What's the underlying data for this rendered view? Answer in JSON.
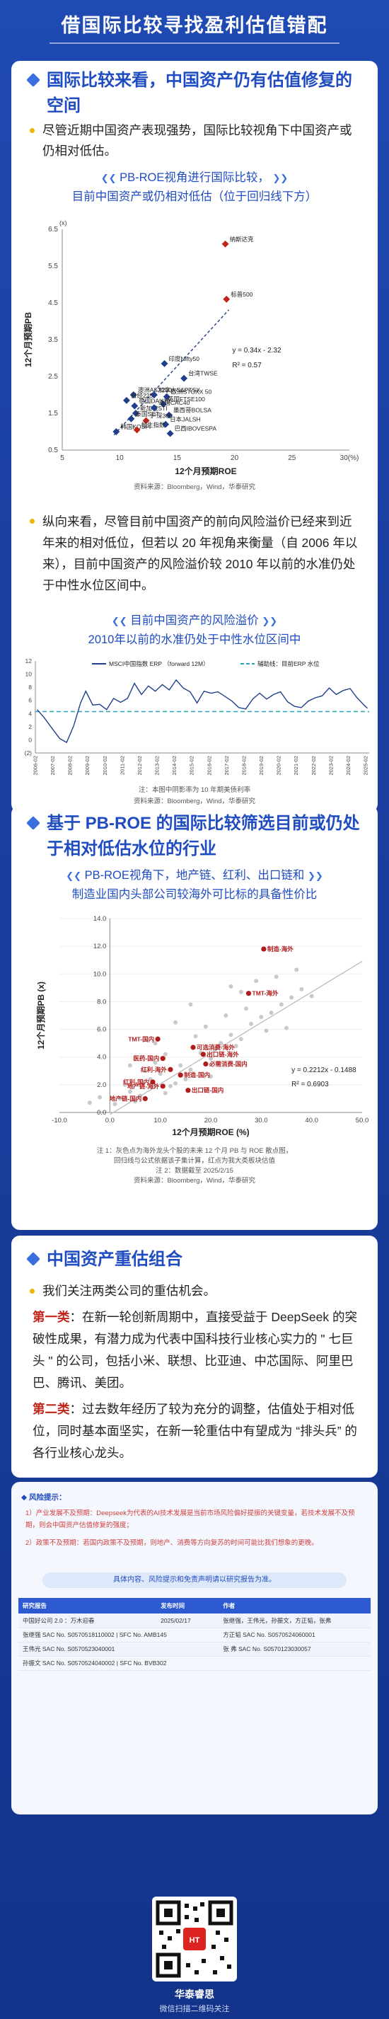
{
  "header": {
    "title": "借国际比较寻找盈利估值错配"
  },
  "section1": {
    "heading": "国际比较来看，中国资产仍有估值修复的空间",
    "bullet": "尽管近期中国资产表现强势，国际比较视角下中国资产或仍相对低估。",
    "chart_title_line1": "PB-ROE视角进行国际比较，",
    "chart_title_line2": "目前中国资产或仍相对低估（位于回归线下方）",
    "source": "资料来源：Bloomberg，Wind，华泰研究",
    "bullet2": "纵向来看，尽管目前中国资产的前向风险溢价已经来到近年来的相对低位，但若以 20 年视角来衡量（自 2006 年以来），目前中国资产的风险溢价较 2010 年以前的水准仍处于中性水位区间中。",
    "chart2_title_line1": "目前中国资产的风险溢价",
    "chart2_title_line2": "2010年以前的水准仍处于中性水位区间中",
    "chart2_note": "注：本图中阴影率为 10 年期美债利率",
    "chart2_source": "资料来源：Bloomberg，Wind，华泰研究"
  },
  "section2": {
    "heading": "基于 PB-ROE 的国际比较筛选目前或仍处于相对低估水位的行业",
    "chart_title_line1": "PB-ROE视角下，地产链、红利、出口链和",
    "chart_title_line2": "制造业国内头部公司较海外可比标的具备性价比",
    "note1": "注 1：灰色点为海外龙头个股的未来 12 个月 PB 与 ROE 散点图，",
    "note1b": "回归线与公式依据该子集计算，红点为我大类板块估值",
    "note2": "注 2：数据截至 2025/2/15",
    "source": "资料来源：Bloomberg，Wind，华泰研究"
  },
  "section3": {
    "heading": "中国资产重估组合",
    "bullet": "我们关注两类公司的重估机会。",
    "p1_kw": "第一类",
    "p1": "：在新一轮创新周期中，直接受益于 DeepSeek 的突破性成果，有潜力成为代表中国科技行业核心实力的 \" 七巨头 \" 的公司，包括小米、联想、比亚迪、中芯国际、阿里巴巴、腾讯、美团。",
    "p2_kw": "第二类",
    "p2": "：过去数年经历了较为充分的调整，估值处于相对低位，同时基本面坚实，在新一轮重估中有望成为 “排头兵” 的各行业核心龙头。"
  },
  "risk": {
    "title": "风险提示：",
    "items": [
      "1）产业发展不及预期：Deepseek为代表的AI技术发展是当前市场风险偏好提振的关键变量，若技术发展不及预期，则会中国资产估值修复的强度；",
      "2）政策不及预期：若国内政策不及预期，则地产、消费等方向复苏的时间可能比我们想象的更晚。"
    ],
    "pill": "具体内容、风险提示和免责声明请以研究报告为准。"
  },
  "authors": {
    "headers": [
      "研究报告",
      "发布时间",
      "作者"
    ],
    "report": [
      "中国好公司 2.0 ：万木迎春",
      "2025/02/17",
      "张继强，王伟光，孙振文，方正韬，张弗"
    ],
    "rows": [
      [
        "张继强 SAC No. S0570518110002 | SFC No. AMB145",
        "方正韬 SAC No. S0570524060001"
      ],
      [
        "王伟光 SAC No. S0570523040001",
        "张 弗 SAC No. S0570123030057"
      ],
      [
        "孙振文 SAC No. S0570524040002 | SFC No. BVB302",
        ""
      ]
    ]
  },
  "footer": {
    "brand": "华泰睿思",
    "caption": "微信扫描二维码关注"
  },
  "chart_data": [
    {
      "type": "scatter",
      "title": "PB-ROE视角进行国际比较，目前中国资产或仍相对低估（位于回归线下方）",
      "xlabel": "12个月预期ROE",
      "ylabel": "12个月预期PB",
      "xlim": [
        5,
        30
      ],
      "ylim": [
        0.5,
        6.5
      ],
      "x_ticks": [
        "5",
        "10",
        "15",
        "20",
        "25",
        "30(%)"
      ],
      "y_ticks": [
        "0.5",
        "1.5",
        "2.5",
        "3.5",
        "4.5",
        "5.5",
        "6.5"
      ],
      "regression": {
        "equation": "y = 0.34x - 2.32",
        "r2": "R² = 0.57"
      },
      "points": [
        {
          "label": "纳斯达克",
          "x": 19.2,
          "y": 6.1,
          "group": "highlight"
        },
        {
          "label": "标普500",
          "x": 19.3,
          "y": 4.6,
          "group": "highlight"
        },
        {
          "label": "印度Nifty50",
          "x": 13.9,
          "y": 2.85,
          "group": "overseas"
        },
        {
          "label": "台湾TWSE",
          "x": 15.6,
          "y": 2.45,
          "group": "overseas"
        },
        {
          "label": "澳洲ASX200",
          "x": 11.2,
          "y": 2.0,
          "group": "overseas"
        },
        {
          "label": "加拿大S&PTSX",
          "x": 13.0,
          "y": 2.0,
          "group": "overseas"
        },
        {
          "label": "日经225",
          "x": 10.6,
          "y": 1.85,
          "group": "overseas"
        },
        {
          "label": "德国DAX30",
          "x": 11.3,
          "y": 1.7,
          "group": "overseas"
        },
        {
          "label": "欧洲STOXX 50",
          "x": 14.1,
          "y": 1.95,
          "group": "overseas"
        },
        {
          "label": "英国FTSE100",
          "x": 13.8,
          "y": 1.75,
          "group": "overseas"
        },
        {
          "label": "新加坡STI",
          "x": 11.4,
          "y": 1.5,
          "group": "overseas"
        },
        {
          "label": "法国CAC40",
          "x": 13.0,
          "y": 1.65,
          "group": "overseas"
        },
        {
          "label": "泰国SET",
          "x": 11.0,
          "y": 1.35,
          "group": "overseas"
        },
        {
          "label": "墨西哥BOLSA",
          "x": 14.3,
          "y": 1.45,
          "group": "overseas"
        },
        {
          "label": "沪深300",
          "x": 12.3,
          "y": 1.3,
          "group": "china"
        },
        {
          "label": "日本JALSH",
          "x": 14.0,
          "y": 1.2,
          "group": "overseas"
        },
        {
          "label": "韩国KOSPI",
          "x": 9.7,
          "y": 1.0,
          "group": "overseas"
        },
        {
          "label": "恒生指数",
          "x": 11.5,
          "y": 1.05,
          "group": "china"
        },
        {
          "label": "巴西IBOVESPA",
          "x": 14.4,
          "y": 0.95,
          "group": "overseas"
        }
      ]
    },
    {
      "type": "line",
      "title": "目前中国资产的风险溢价 2010年以前的水准仍处于中性水位区间中",
      "legend": [
        "MSCI中国指数 ERP （forward 12M）",
        "辅助线：目前ERP 水位"
      ],
      "ylim": [
        -2,
        12
      ],
      "y_ticks": [
        "(2)",
        "0",
        "2",
        "4",
        "6",
        "8",
        "10",
        "12"
      ],
      "x_ticks": [
        "2006-02",
        "2007-02",
        "2008-02",
        "2009-02",
        "2010-02",
        "2011-02",
        "2012-02",
        "2013-02",
        "2014-02",
        "2015-02",
        "2016-02",
        "2017-02",
        "2018-02",
        "2019-02",
        "2020-02",
        "2021-02",
        "2022-02",
        "2023-02",
        "2024-02",
        "2025-02"
      ],
      "current_level": 4.3,
      "x": [
        2006.1,
        2006.5,
        2007.0,
        2007.4,
        2007.8,
        2008.2,
        2008.6,
        2008.9,
        2009.3,
        2009.7,
        2010.1,
        2010.5,
        2010.9,
        2011.3,
        2011.7,
        2012.1,
        2012.5,
        2012.9,
        2013.3,
        2013.7,
        2014.1,
        2014.5,
        2014.9,
        2015.3,
        2015.7,
        2016.1,
        2016.5,
        2016.9,
        2017.3,
        2017.7,
        2018.1,
        2018.5,
        2018.9,
        2019.3,
        2019.7,
        2020.1,
        2020.5,
        2020.9,
        2021.3,
        2021.7,
        2022.1,
        2022.5,
        2022.9,
        2023.3,
        2023.7,
        2024.1,
        2024.5,
        2024.9,
        2025.1
      ],
      "values": [
        4.6,
        3.4,
        1.6,
        0.2,
        -0.4,
        2.1,
        5.6,
        7.4,
        5.3,
        5.4,
        4.6,
        6.3,
        5.7,
        6.3,
        8.6,
        6.9,
        8.2,
        7.4,
        8.4,
        7.6,
        9.1,
        7.9,
        7.3,
        5.6,
        7.4,
        7.1,
        7.3,
        6.6,
        5.9,
        4.9,
        4.7,
        6.2,
        7.1,
        6.2,
        6.9,
        7.3,
        5.8,
        5.1,
        4.9,
        5.9,
        6.4,
        6.7,
        7.9,
        6.9,
        7.5,
        7.8,
        6.4,
        5.3,
        4.8
      ]
    },
    {
      "type": "scatter",
      "title": "PB-ROE视角下，地产链、红利、出口链和制造业国内头部公司较海外可比标的具备性价比",
      "xlabel": "12个月预期ROE (%)",
      "ylabel": "12个月预期PB (x)",
      "xlim": [
        -10,
        50
      ],
      "ylim": [
        0,
        14
      ],
      "x_ticks": [
        "-10.0",
        "0.0",
        "10.0",
        "20.0",
        "30.0",
        "40.0",
        "50.0"
      ],
      "y_ticks": [
        "0.0",
        "2.0",
        "4.0",
        "6.0",
        "8.0",
        "10.0",
        "12.0",
        "14.0"
      ],
      "regression": {
        "equation": "y = 0.2212x - 0.1488",
        "r2": "R² = 0.6903"
      },
      "points": [
        {
          "label": "制造-海外",
          "x": 30.5,
          "y": 11.8,
          "group": "red"
        },
        {
          "label": "TMT-海外",
          "x": 27.5,
          "y": 8.6,
          "group": "red"
        },
        {
          "label": "TMT-国内",
          "x": 9.5,
          "y": 5.3,
          "group": "red"
        },
        {
          "label": "可选消费-海外",
          "x": 16.5,
          "y": 4.7,
          "group": "red"
        },
        {
          "label": "出口链-海外",
          "x": 18.5,
          "y": 4.2,
          "group": "red"
        },
        {
          "label": "医药-国内",
          "x": 10.5,
          "y": 3.9,
          "group": "red"
        },
        {
          "label": "必需消费-国内",
          "x": 19.0,
          "y": 3.5,
          "group": "red"
        },
        {
          "label": "红利-海外",
          "x": 12.0,
          "y": 3.1,
          "group": "red"
        },
        {
          "label": "制造-国内",
          "x": 14.0,
          "y": 2.7,
          "group": "red"
        },
        {
          "label": "红利-国内",
          "x": 8.5,
          "y": 2.2,
          "group": "red"
        },
        {
          "label": "地产链-海外",
          "x": 10.5,
          "y": 1.9,
          "group": "red"
        },
        {
          "label": "出口链-国内",
          "x": 15.5,
          "y": 1.6,
          "group": "red"
        },
        {
          "label": "地产链-国内",
          "x": 7.0,
          "y": 1.0,
          "group": "red"
        }
      ]
    }
  ]
}
